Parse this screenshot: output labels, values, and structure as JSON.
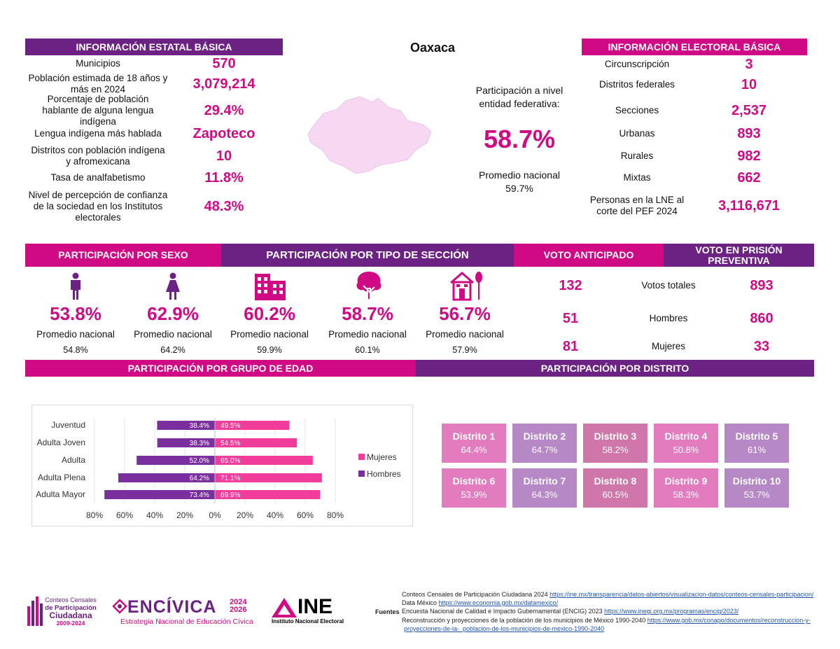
{
  "title": "Oaxaca",
  "estatal": {
    "header": "INFORMACIÓN ESTATAL BÁSICA",
    "rows": [
      {
        "label": "Municipios",
        "value": "570"
      },
      {
        "label": "Población estimada de 18 años y más en 2024",
        "value": "3,079,214"
      },
      {
        "label": "Porcentaje de población hablante de alguna lengua indígena",
        "value": "29.4%"
      },
      {
        "label": "Lengua indígena más hablada",
        "value": "Zapoteco"
      },
      {
        "label": "Distritos con población indígena y afromexicana",
        "value": "10"
      },
      {
        "label": "Tasa de analfabetismo",
        "value": "11.8%"
      },
      {
        "label": "Nivel de percepción de confianza de la sociedad en los Institutos electorales",
        "value": "48.3%"
      }
    ]
  },
  "participacion": {
    "label": "Participación a nivel entidad federativa:",
    "value": "58.7%",
    "promedio_label": "Promedio nacional",
    "promedio_value": "59.7%"
  },
  "electoral": {
    "header": "INFORMACIÓN ELECTORAL BÁSICA",
    "rows": [
      {
        "label": "Circunscripción",
        "value": "3"
      },
      {
        "label": "Distritos federales",
        "value": "10"
      },
      {
        "label": "Secciones",
        "value": "2,537"
      },
      {
        "label": "Urbanas",
        "value": "893"
      },
      {
        "label": "Rurales",
        "value": "982"
      },
      {
        "label": "Mixtas",
        "value": "662"
      },
      {
        "label": "Personas en la LNE al corte del PEF 2024",
        "value": "3,116,671"
      }
    ]
  },
  "sections": {
    "sexo": "PARTICIPACIÓN POR SEXO",
    "tipo": "PARTICIPACIÓN POR TIPO DE SECCIÓN",
    "anticipado": "VOTO ANTICIPADO",
    "prision": "VOTO EN PRISIÓN PREVENTIVA",
    "edad": "PARTICIPACIÓN POR GRUPO DE EDAD",
    "distrito": "PARTICIPACIÓN POR DISTRITO"
  },
  "stats": [
    {
      "icon": "man-icon",
      "value": "53.8%",
      "label": "Promedio nacional",
      "nacional": "54.8%"
    },
    {
      "icon": "woman-icon",
      "value": "62.9%",
      "label": "Promedio nacional",
      "nacional": "64.2%"
    },
    {
      "icon": "buildings-icon",
      "value": "60.2%",
      "label": "Promedio nacional",
      "nacional": "59.9%"
    },
    {
      "icon": "tree-icon",
      "value": "58.7%",
      "label": "Promedio nacional",
      "nacional": "60.1%"
    },
    {
      "icon": "house-tree-icon",
      "value": "56.7%",
      "label": "Promedio nacional",
      "nacional": "57.9%"
    }
  ],
  "voto": {
    "anticipado": [
      "132",
      "51",
      "81"
    ],
    "labels": [
      "Votos totales",
      "Hombres",
      "Mujeres"
    ],
    "prision": [
      "893",
      "860",
      "33"
    ]
  },
  "chart_data": {
    "type": "bar",
    "orientation": "horizontal",
    "categories": [
      "Juventud",
      "Adulta Joven",
      "Adulta",
      "Adulta Plena",
      "Adulta Mayor"
    ],
    "series": [
      {
        "name": "Hombres",
        "values": [
          38.4,
          38.3,
          52.0,
          64.2,
          73.4
        ],
        "labels": [
          "38.4%",
          "38.3%",
          "52.0%",
          "64.2%",
          "73.4%"
        ],
        "color": "#7b2f9e"
      },
      {
        "name": "Mujeres",
        "values": [
          49.5,
          54.5,
          65.0,
          71.1,
          69.9
        ],
        "labels": [
          "49.5%",
          "54.5%",
          "65.0%",
          "71.1%",
          "69.9%"
        ],
        "color": "#f03c9b"
      }
    ],
    "xticks": [
      "80%",
      "60%",
      "40%",
      "20%",
      "0%",
      "20%",
      "40%",
      "60%",
      "80%"
    ],
    "xlim": [
      -80,
      80
    ],
    "legend": "right"
  },
  "distritos": [
    {
      "name": "Distrito 1",
      "value": "64.4%",
      "color": "#e27cbf"
    },
    {
      "name": "Distrito 2",
      "value": "64.7%",
      "color": "#b688c6"
    },
    {
      "name": "Distrito 3",
      "value": "58.2%",
      "color": "#cf77aa"
    },
    {
      "name": "Distrito 4",
      "value": "50.8%",
      "color": "#e27cbf"
    },
    {
      "name": "Distrito 5",
      "value": "61%",
      "color": "#b688c6"
    },
    {
      "name": "Distrito 6",
      "value": "53.9%",
      "color": "#e27cbf"
    },
    {
      "name": "Distrito 7",
      "value": "64.3%",
      "color": "#b688c6"
    },
    {
      "name": "Distrito 8",
      "value": "60.5%",
      "color": "#cf77aa"
    },
    {
      "name": "Distrito 9",
      "value": "58.3%",
      "color": "#e27cbf"
    },
    {
      "name": "Distrito 10",
      "value": "53.7%",
      "color": "#b688c6"
    }
  ],
  "logos": {
    "conteos": [
      "Conteos Censales",
      "de Participación",
      "Ciudadana",
      "2009-2024"
    ],
    "encivica": "ENCÍVICA",
    "encivica_years": [
      "2024",
      "2026"
    ],
    "encivica_sub": "Estrategia Nacional de Educación Cívica",
    "ine": "INE",
    "ine_sub": "Instituto Nacional Electoral"
  },
  "fuentes": {
    "label": "Fuentes",
    "lines": [
      {
        "text": "Conteos Censales de Participación Ciudadana 2024 ",
        "link": "https://ine.mx/transparencia/datos-abiertos/visualizacion-datos/conteos-censales-participacion/"
      },
      {
        "text": "Data México ",
        "link": "https://www.economia.gob.mx/datamexico/"
      },
      {
        "text": "Encuesta Nacional de Calidad e Impacto Gubernamental (ENCIG) 2023 ",
        "link": "https://www.inegi.org.mx/programas/encig/2023/"
      },
      {
        "text": "Reconstrucción y proyecciones de la población de los municipios de México 1990-2040 ",
        "link": "https://www.gob.mx/conapo/documentos/reconstruccion-y-"
      },
      {
        "text": "",
        "link": "proyecciones-de-la-_poblacion-de-los-municipios-de-mexico-1990-2040"
      }
    ]
  }
}
